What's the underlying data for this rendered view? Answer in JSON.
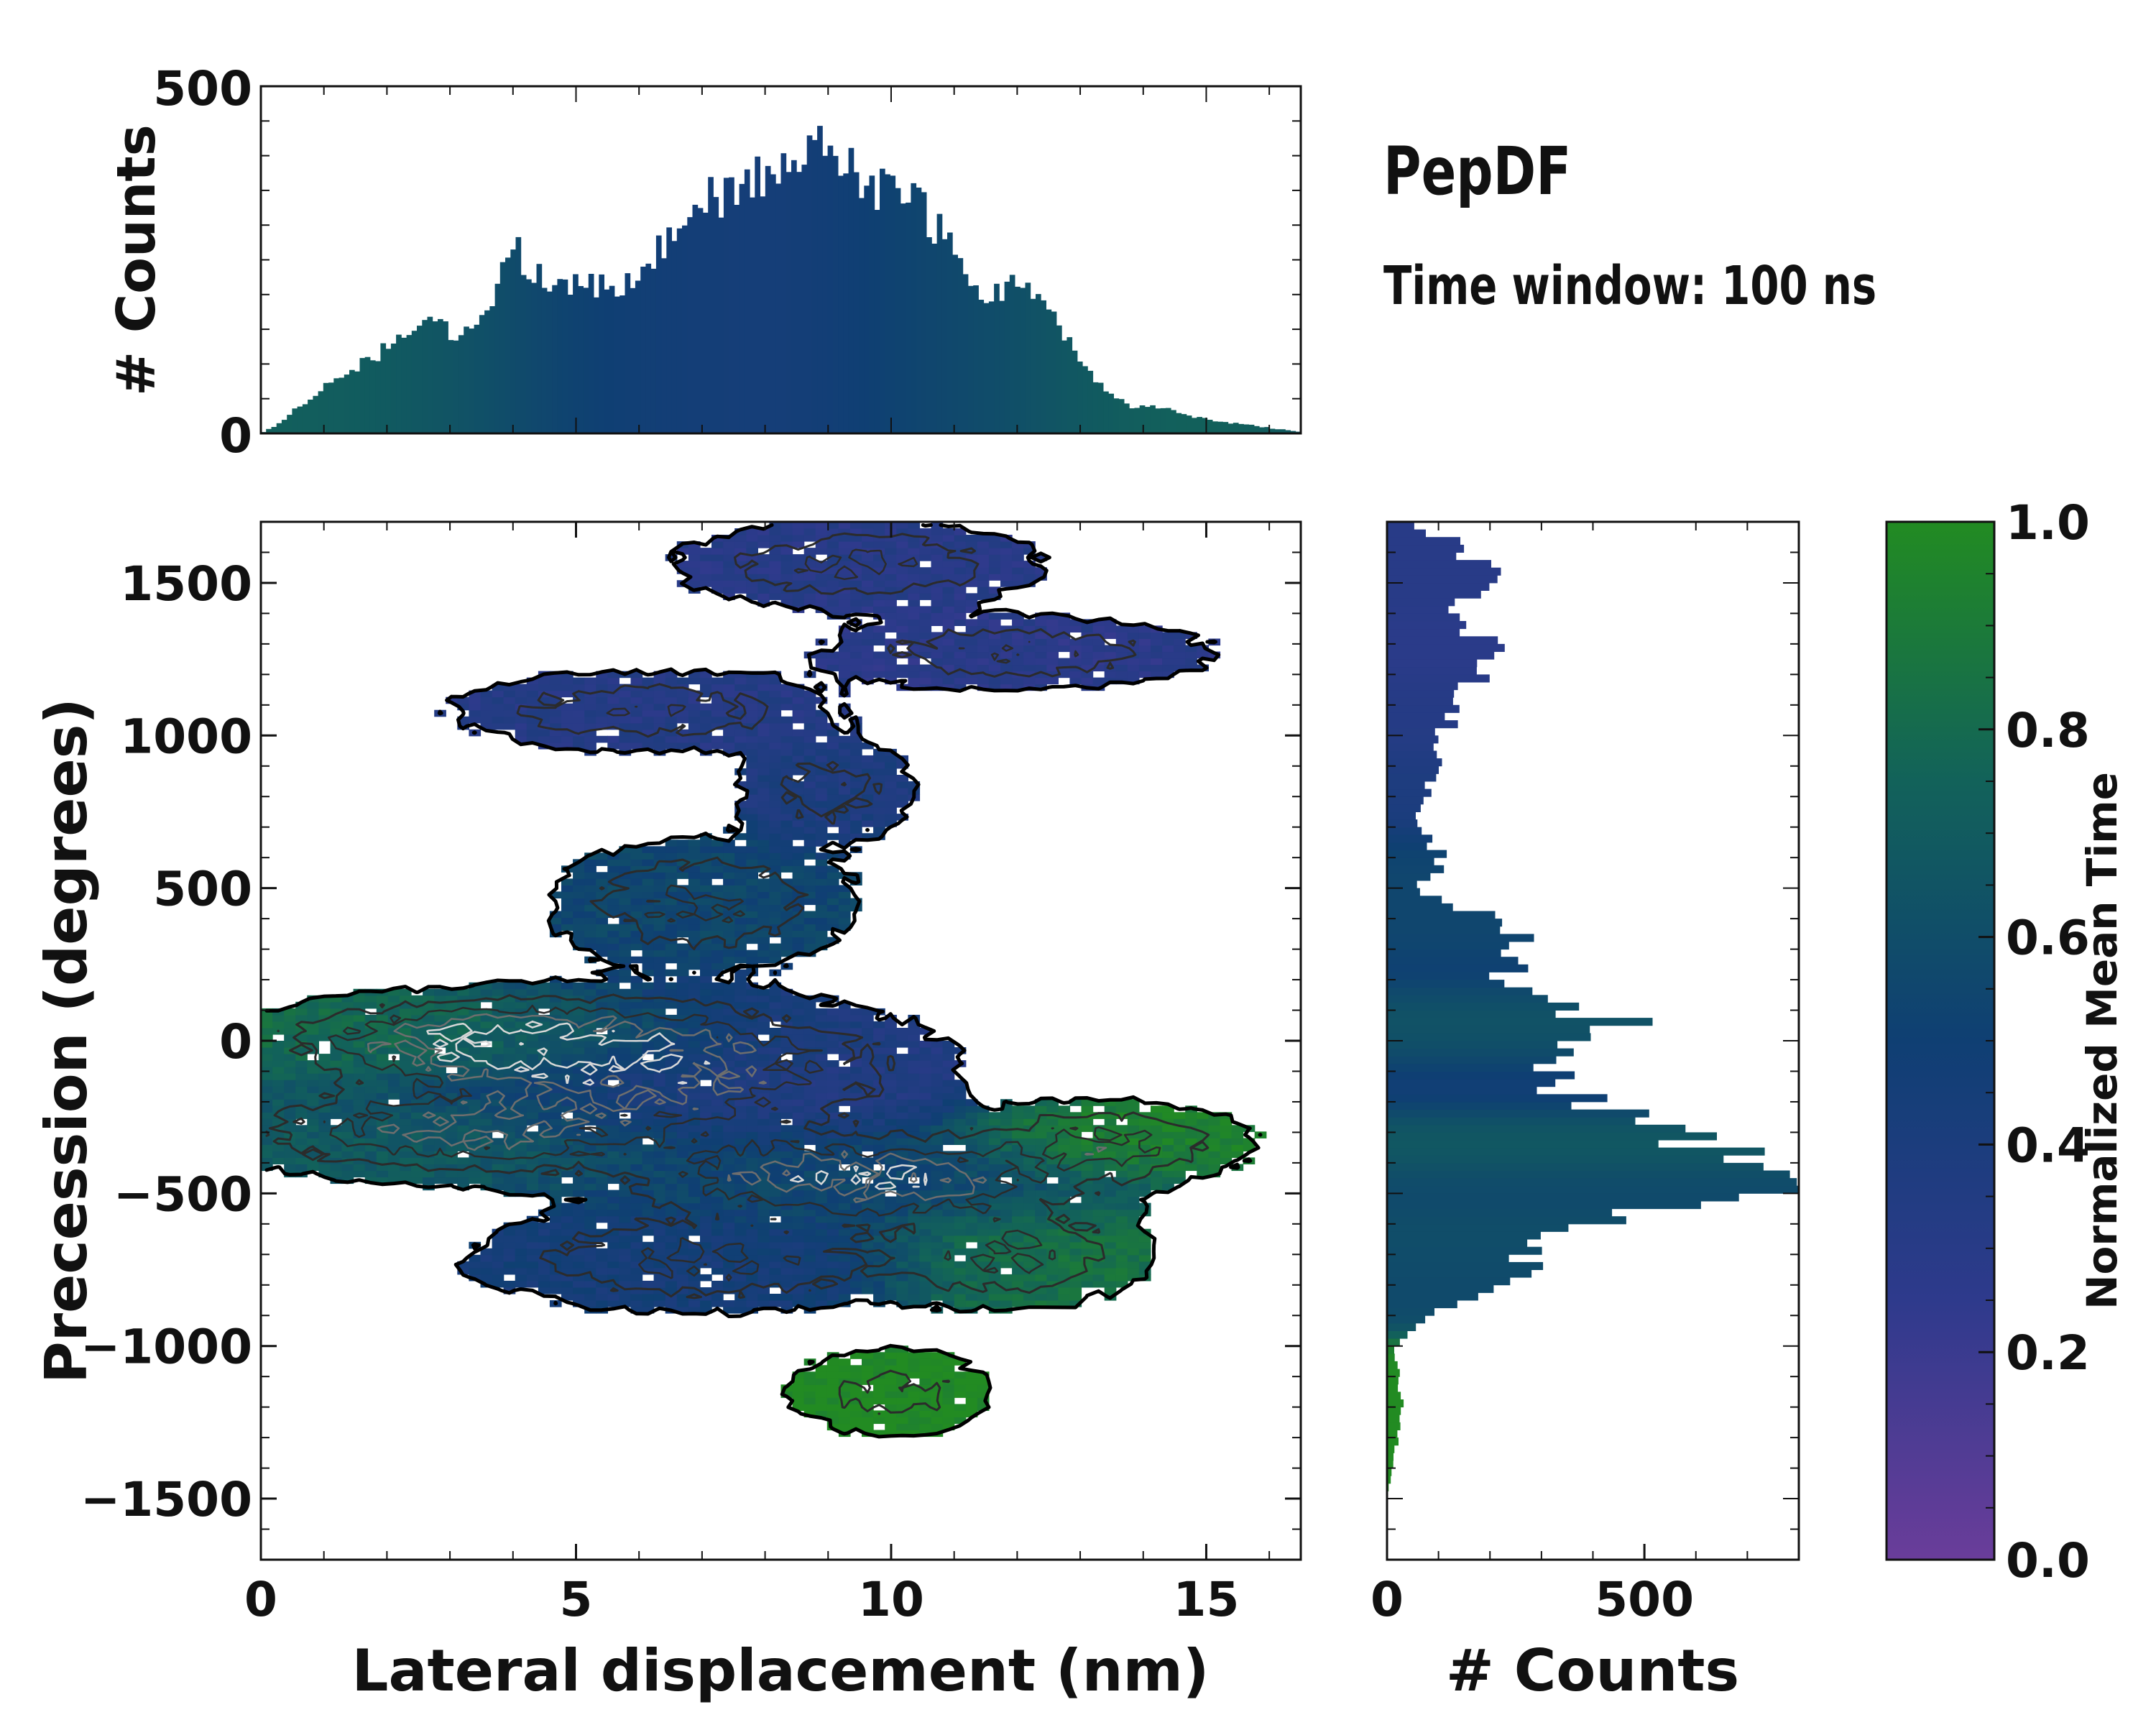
{
  "figure": {
    "title": "PepDF",
    "subtitle": "Time window: 100 ns",
    "colors": {
      "cmap_low": "#6a3d9a",
      "cmap_q1": "#2e3a8c",
      "cmap_mid": "#0f3f73",
      "cmap_q3": "#12625a",
      "cmap_high": "#228b22",
      "contour_outer": "#000000",
      "contour_inner": "#2b2b2b",
      "contour_gray": "#6e6e6e",
      "contour_light": "#d8d8d8"
    }
  },
  "chart_data": [
    {
      "id": "top-histogram",
      "type": "bar",
      "title": "",
      "xlabel": "",
      "ylabel": "# Counts",
      "xlim": [
        0,
        16.5
      ],
      "ylim": [
        0,
        500
      ],
      "yticks": [
        0,
        500
      ],
      "bin_width": 0.0825,
      "profile": [
        [
          0.0,
          0
        ],
        [
          0.3,
          15
        ],
        [
          0.7,
          45
        ],
        [
          1.2,
          85
        ],
        [
          1.8,
          110
        ],
        [
          2.6,
          160
        ],
        [
          3.2,
          140
        ],
        [
          3.6,
          180
        ],
        [
          4.0,
          270
        ],
        [
          4.5,
          220
        ],
        [
          5.0,
          210
        ],
        [
          5.6,
          210
        ],
        [
          6.0,
          240
        ],
        [
          6.6,
          300
        ],
        [
          7.2,
          340
        ],
        [
          7.8,
          370
        ],
        [
          8.4,
          390
        ],
        [
          8.7,
          440
        ],
        [
          9.2,
          390
        ],
        [
          9.8,
          350
        ],
        [
          10.4,
          340
        ],
        [
          11.0,
          260
        ],
        [
          11.5,
          190
        ],
        [
          12.1,
          230
        ],
        [
          12.6,
          160
        ],
        [
          13.2,
          80
        ],
        [
          13.8,
          40
        ],
        [
          14.4,
          35
        ],
        [
          15.0,
          20
        ],
        [
          16.0,
          8
        ],
        [
          16.5,
          2
        ]
      ],
      "colored_by": "Normalized Mean Time"
    },
    {
      "id": "main-density",
      "type": "heatmap",
      "title": "",
      "xlabel": "Lateral displacement (nm)",
      "ylabel": "Precession (degrees)",
      "xlim": [
        0,
        16.5
      ],
      "ylim": [
        -1700,
        1700
      ],
      "xticks": [
        0,
        5,
        10,
        15
      ],
      "yticks": [
        -1500,
        -1000,
        -500,
        0,
        500,
        1000,
        1500
      ],
      "value": "Normalized Mean Time",
      "clusters": [
        {
          "x": 9.5,
          "y": 1560,
          "sx": 2.4,
          "sy": 120,
          "w": 1.0,
          "t": 0.3
        },
        {
          "x": 12.0,
          "y": 1270,
          "sx": 2.6,
          "sy": 100,
          "w": 0.9,
          "t": 0.28
        },
        {
          "x": 6.0,
          "y": 1080,
          "sx": 2.5,
          "sy": 110,
          "w": 0.9,
          "t": 0.32
        },
        {
          "x": 9.0,
          "y": 820,
          "sx": 1.3,
          "sy": 150,
          "w": 0.7,
          "t": 0.38
        },
        {
          "x": 7.0,
          "y": 450,
          "sx": 2.0,
          "sy": 170,
          "w": 1.0,
          "t": 0.55
        },
        {
          "x": 3.5,
          "y": 0,
          "sx": 3.0,
          "sy": 120,
          "w": 1.4,
          "t": 0.85
        },
        {
          "x": 6.5,
          "y": -100,
          "sx": 3.5,
          "sy": 200,
          "w": 1.3,
          "t": 0.35
        },
        {
          "x": 3.0,
          "y": -300,
          "sx": 3.0,
          "sy": 130,
          "w": 1.2,
          "t": 0.7
        },
        {
          "x": 9.5,
          "y": -450,
          "sx": 3.0,
          "sy": 120,
          "w": 1.6,
          "t": 0.55
        },
        {
          "x": 13.5,
          "y": -330,
          "sx": 1.8,
          "sy": 110,
          "w": 1.0,
          "t": 0.95
        },
        {
          "x": 7.0,
          "y": -720,
          "sx": 3.0,
          "sy": 140,
          "w": 1.0,
          "t": 0.45
        },
        {
          "x": 12.0,
          "y": -700,
          "sx": 1.8,
          "sy": 150,
          "w": 0.9,
          "t": 0.85
        },
        {
          "x": 10.0,
          "y": -1150,
          "sx": 1.5,
          "sy": 130,
          "w": 0.7,
          "t": 1.0
        }
      ]
    },
    {
      "id": "right-histogram",
      "type": "bar",
      "orientation": "horizontal",
      "title": "",
      "xlabel": "# Counts",
      "ylabel": "",
      "xlim": [
        0,
        800
      ],
      "xticks": [
        0,
        500
      ],
      "ylim": [
        -1700,
        1700
      ],
      "profile": [
        [
          1700,
          50
        ],
        [
          1600,
          160
        ],
        [
          1500,
          200
        ],
        [
          1400,
          130
        ],
        [
          1300,
          200
        ],
        [
          1200,
          180
        ],
        [
          1100,
          150
        ],
        [
          1000,
          110
        ],
        [
          900,
          90
        ],
        [
          800,
          80
        ],
        [
          700,
          50
        ],
        [
          600,
          120
        ],
        [
          500,
          50
        ],
        [
          400,
          200
        ],
        [
          300,
          270
        ],
        [
          200,
          230
        ],
        [
          100,
          350
        ],
        [
          60,
          540
        ],
        [
          0,
          400
        ],
        [
          -100,
          300
        ],
        [
          -200,
          380
        ],
        [
          -300,
          560
        ],
        [
          -380,
          640
        ],
        [
          -420,
          690
        ],
        [
          -500,
          730
        ],
        [
          -600,
          350
        ],
        [
          -700,
          300
        ],
        [
          -800,
          200
        ],
        [
          -900,
          80
        ],
        [
          -1000,
          15
        ],
        [
          -1200,
          30
        ],
        [
          -1350,
          15
        ],
        [
          -1500,
          0
        ]
      ],
      "colored_by": "Normalized Mean Time"
    },
    {
      "id": "colorbar",
      "type": "colorbar",
      "label": "Normalized Mean Time",
      "range": [
        0.0,
        1.0
      ],
      "ticks": [
        "0.0",
        "0.2",
        "0.4",
        "0.6",
        "0.8",
        "1.0"
      ]
    }
  ]
}
